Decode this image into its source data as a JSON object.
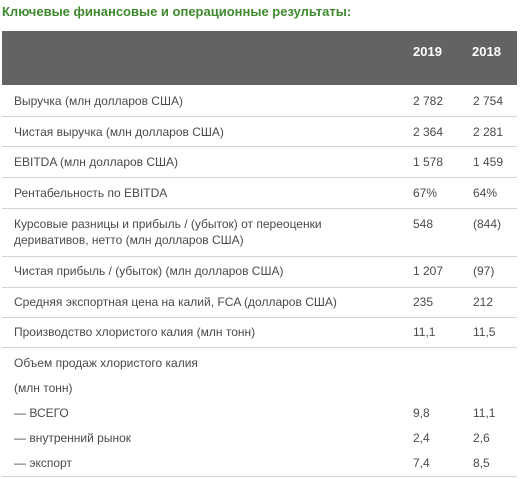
{
  "title": "Ключевые финансовые и операционные результаты:",
  "columns": [
    "2019",
    "2018"
  ],
  "rows": [
    {
      "label": "Выручка (млн долларов США)",
      "v2019": "2 782",
      "v2018": "2 754"
    },
    {
      "label": "Чистая выручка (млн долларов США)",
      "v2019": "2 364",
      "v2018": "2 281"
    },
    {
      "label": "EBITDA (млн долларов США)",
      "v2019": "1 578",
      "v2018": "1 459"
    },
    {
      "label": "Рентабельность по EBITDA",
      "v2019": "67%",
      "v2018": "64%"
    },
    {
      "label_line1": "Курсовые разницы и прибыль / (убыток) от переоценки",
      "label_line2": "деривативов, нетто (млн долларов США)",
      "v2019": "548",
      "v2018": "(844)"
    },
    {
      "label": "Чистая прибыль / (убыток) (млн долларов США)",
      "v2019": "1 207",
      "v2018": "(97)"
    },
    {
      "label": "Средняя экспортная цена на калий, FCA (долларов США)",
      "v2019": "235",
      "v2018": "212"
    },
    {
      "label": "Производство хлористого калия (млн тонн)",
      "v2019": "11,1",
      "v2018": "11,5"
    },
    {
      "label": "Объем продаж хлористого калия"
    },
    {
      "label": "(млн тонн)"
    },
    {
      "label": "— ВСЕГО",
      "v2019": "9,8",
      "v2018": "11,1"
    },
    {
      "label": "— внутренний рынок",
      "v2019": "2,4",
      "v2018": "2,6"
    },
    {
      "label": "— экспорт",
      "v2019": "7,4",
      "v2018": "8,5"
    }
  ]
}
